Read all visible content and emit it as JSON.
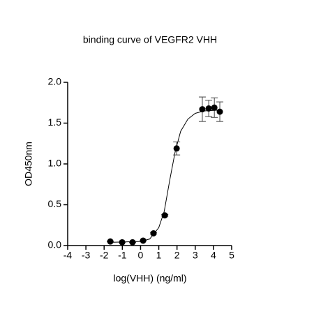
{
  "chart_data": {
    "type": "scatter",
    "title": "binding curve of VEGFR2  VHH",
    "xlabel": "log(VHH) (ng/ml)",
    "ylabel": "OD450nm",
    "xlim": [
      -4,
      5
    ],
    "xticks": [
      -4,
      -3,
      -2,
      -1,
      0,
      1,
      2,
      3,
      4,
      5
    ],
    "ylim": [
      0,
      2
    ],
    "yticks": [
      {
        "value": 0,
        "label": "0.0"
      },
      0.5,
      {
        "value": 1,
        "label": "1.0"
      },
      1.5,
      {
        "value": 2,
        "label": "2.0"
      }
    ],
    "color": "#000000",
    "x": [
      -1.66,
      -1.01,
      -0.44,
      0.14,
      0.71,
      1.33,
      1.98,
      3.39,
      3.74,
      4.05,
      4.35
    ],
    "values": [
      0.05,
      0.04,
      0.04,
      0.06,
      0.15,
      0.37,
      1.19,
      1.67,
      1.68,
      1.69,
      1.64
    ],
    "errors": [
      0,
      0,
      0,
      0,
      0.01,
      0.01,
      0.08,
      0.15,
      0.1,
      0.12,
      0.12
    ],
    "curve": {
      "x": [
        -1.66,
        0,
        0.5,
        1,
        1.3,
        1.6,
        1.9,
        2.2,
        2.6,
        3,
        3.5,
        4.35
      ],
      "values": [
        0.04,
        0.05,
        0.08,
        0.22,
        0.42,
        0.8,
        1.15,
        1.4,
        1.55,
        1.62,
        1.65,
        1.66
      ]
    }
  }
}
